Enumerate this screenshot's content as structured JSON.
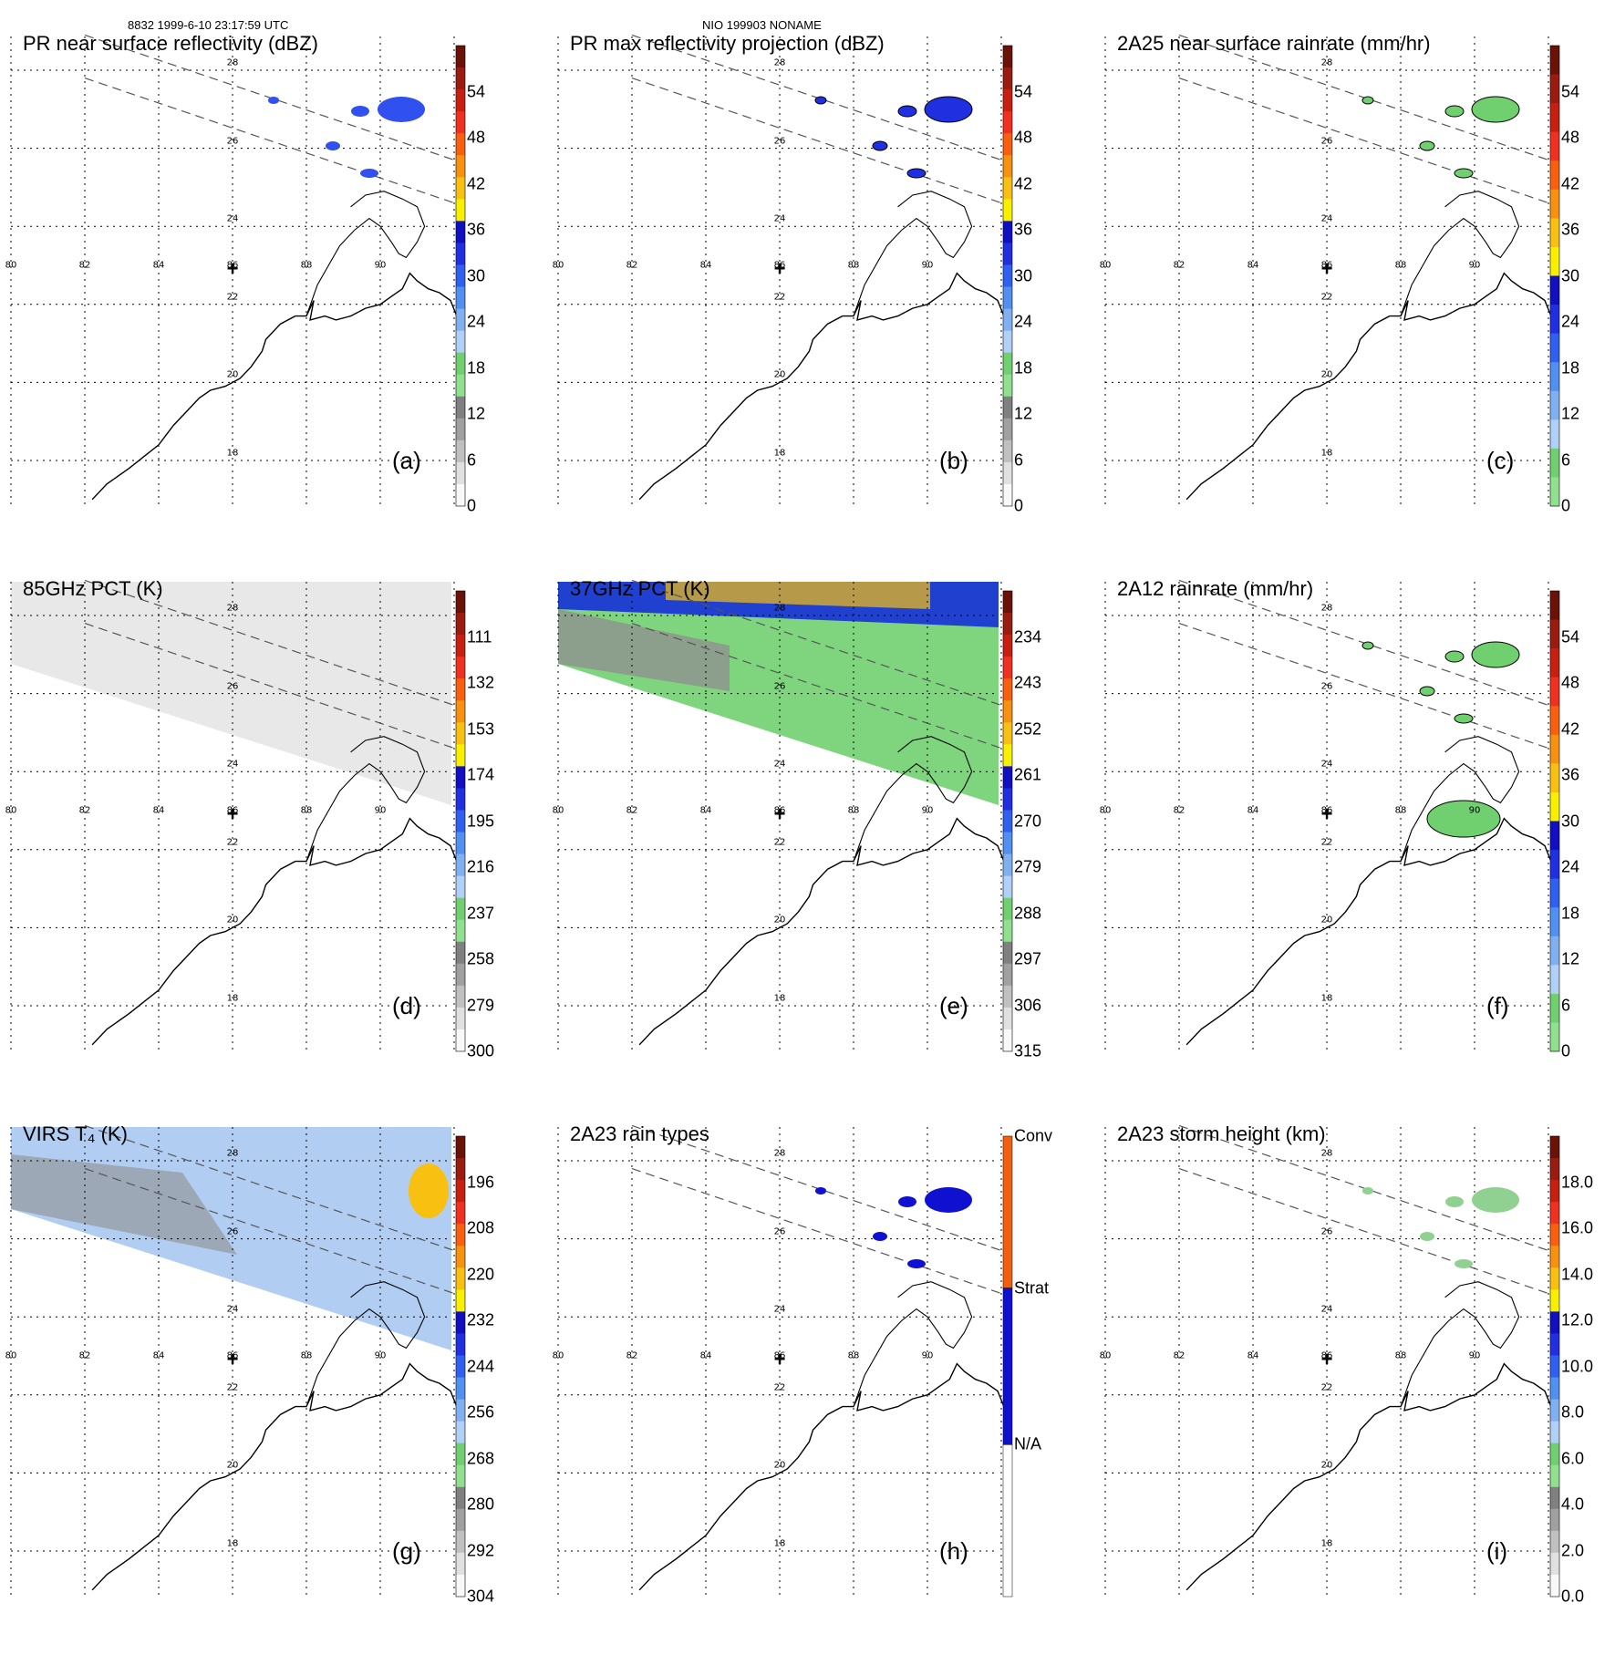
{
  "header": {
    "left": "8832 1999-6-10 23:17:59 UTC",
    "center": "NIO 199903 NONAME"
  },
  "grid": {
    "lon_labels": [
      "80",
      "82",
      "84",
      "86",
      "88",
      "90"
    ],
    "lat_labels": [
      "28",
      "26",
      "24",
      "22",
      "20",
      "18"
    ]
  },
  "panels": [
    {
      "id": "a",
      "title": "PR near surface reflectivity (dBZ)",
      "label": "(a)",
      "colorbar": [
        "54",
        "48",
        "42",
        "36",
        "30",
        "24",
        "18",
        "12",
        "6",
        "0"
      ]
    },
    {
      "id": "b",
      "title": "PR max reflectivity projection (dBZ)",
      "label": "(b)",
      "colorbar": [
        "54",
        "48",
        "42",
        "36",
        "30",
        "24",
        "18",
        "12",
        "6",
        "0"
      ]
    },
    {
      "id": "c",
      "title": "2A25 near surface rainrate (mm/hr)",
      "label": "(c)",
      "colorbar": [
        "54",
        "48",
        "42",
        "36",
        "30",
        "24",
        "18",
        "12",
        "6",
        "0"
      ]
    },
    {
      "id": "d",
      "title": "85GHz PCT (K)",
      "label": "(d)",
      "colorbar": [
        "111",
        "132",
        "153",
        "174",
        "195",
        "216",
        "237",
        "258",
        "279",
        "300"
      ]
    },
    {
      "id": "e",
      "title": "37GHz PCT (K)",
      "label": "(e)",
      "colorbar": [
        "234",
        "243",
        "252",
        "261",
        "270",
        "279",
        "288",
        "297",
        "306",
        "315"
      ]
    },
    {
      "id": "f",
      "title": "2A12 rainrate (mm/hr)",
      "label": "(f)",
      "colorbar": [
        "54",
        "48",
        "42",
        "36",
        "30",
        "24",
        "18",
        "12",
        "6",
        "0"
      ]
    },
    {
      "id": "g",
      "title": "VIRS T₄ (K)",
      "label": "(g)",
      "colorbar": [
        "196",
        "208",
        "220",
        "232",
        "244",
        "256",
        "268",
        "280",
        "292",
        "304"
      ]
    },
    {
      "id": "h",
      "title": "2A23 rain types",
      "label": "(h)",
      "colorbar": [
        "Conv",
        "Strat",
        "N/A"
      ]
    },
    {
      "id": "i",
      "title": "2A23 storm height (km)",
      "label": "(i)",
      "colorbar": [
        "18.0",
        "16.0",
        "14.0",
        "12.0",
        "10.0",
        "8.0",
        "6.0",
        "4.0",
        "2.0",
        "0.0"
      ]
    }
  ],
  "colors": {
    "scale": [
      "#7a1a10",
      "#b01818",
      "#e03010",
      "#f06010",
      "#f8a020",
      "#f8e000",
      "#1010d0",
      "#3050f0",
      "#60a0f0",
      "#b0d0f8",
      "#70d070",
      "#909090",
      "#c0c0c0",
      "#f0f0f0"
    ],
    "rain_scale": [
      "#7a1a10",
      "#b01818",
      "#e03010",
      "#f06010",
      "#f8a020",
      "#f8e000",
      "#1010d0",
      "#3050f0",
      "#60a0f0",
      "#b0d0f8",
      "#70d070"
    ]
  }
}
